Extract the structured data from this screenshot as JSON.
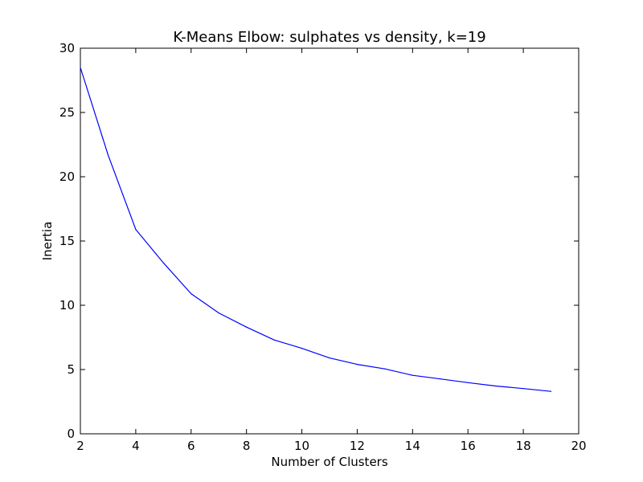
{
  "chart_data": {
    "type": "line",
    "title": "K-Means Elbow: sulphates vs density, k=19",
    "xlabel": "Number of Clusters",
    "ylabel": "Inertia",
    "xlim": [
      2,
      20
    ],
    "ylim": [
      0,
      30
    ],
    "xticks": [
      2,
      4,
      6,
      8,
      10,
      12,
      14,
      16,
      18,
      20
    ],
    "yticks": [
      0,
      5,
      10,
      15,
      20,
      25,
      30
    ],
    "grid": false,
    "series": [
      {
        "color": "#0000ff",
        "x": [
          2,
          3,
          4,
          5,
          6,
          7,
          8,
          9,
          10,
          11,
          12,
          13,
          14,
          15,
          16,
          17,
          18,
          19
        ],
        "y": [
          28.5,
          21.7,
          15.9,
          13.3,
          10.9,
          9.4,
          8.3,
          7.3,
          6.65,
          5.9,
          5.4,
          5.05,
          4.55,
          4.27,
          3.98,
          3.72,
          3.52,
          3.3
        ]
      }
    ]
  }
}
